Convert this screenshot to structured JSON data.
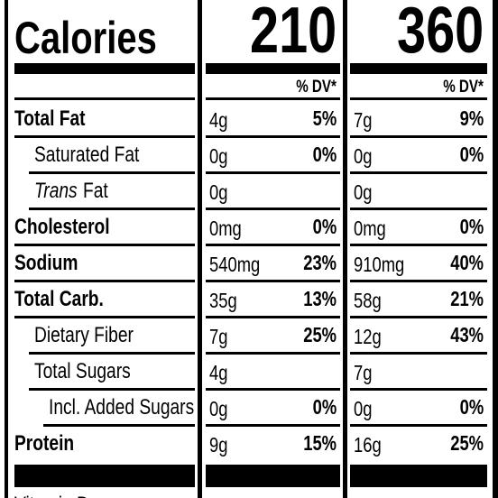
{
  "calories": {
    "label": "Calories",
    "values": [
      "210",
      "360"
    ]
  },
  "dv_header": [
    "% DV*",
    "% DV*"
  ],
  "rows": [
    {
      "label": "Total Fat",
      "level": 0,
      "cols": [
        [
          "4g",
          "5%"
        ],
        [
          "7g",
          "9%"
        ]
      ]
    },
    {
      "label": "Saturated Fat",
      "level": 1,
      "cols": [
        [
          "0g",
          "0%"
        ],
        [
          "0g",
          "0%"
        ]
      ]
    },
    {
      "label_italic": "Trans",
      "label": "Fat",
      "level": 1,
      "cols": [
        [
          "0g"
        ],
        [
          "0g"
        ]
      ]
    },
    {
      "label": "Cholesterol",
      "level": 0,
      "cols": [
        [
          "0mg",
          "0%"
        ],
        [
          "0mg",
          "0%"
        ]
      ]
    },
    {
      "label": "Sodium",
      "level": 0,
      "cols": [
        [
          "540mg",
          "23%"
        ],
        [
          "910mg",
          "40%"
        ]
      ]
    },
    {
      "label": "Total Carb.",
      "level": 0,
      "cols": [
        [
          "35g",
          "13%"
        ],
        [
          "58g",
          "21%"
        ]
      ]
    },
    {
      "label": "Dietary Fiber",
      "level": 1,
      "cols": [
        [
          "7g",
          "25%"
        ],
        [
          "12g",
          "43%"
        ]
      ]
    },
    {
      "label": "Total Sugars",
      "level": 1,
      "cols": [
        [
          "4g"
        ],
        [
          "7g"
        ]
      ]
    },
    {
      "label": "Incl. Added Sugars",
      "level": 2,
      "cols": [
        [
          "0g",
          "0%"
        ],
        [
          "0g",
          "0%"
        ]
      ]
    },
    {
      "label": "Protein",
      "level": 0,
      "cols": [
        [
          "9g",
          "15%"
        ],
        [
          "16g",
          "25%"
        ]
      ]
    }
  ],
  "footer": {
    "label": "Vitamin D"
  }
}
